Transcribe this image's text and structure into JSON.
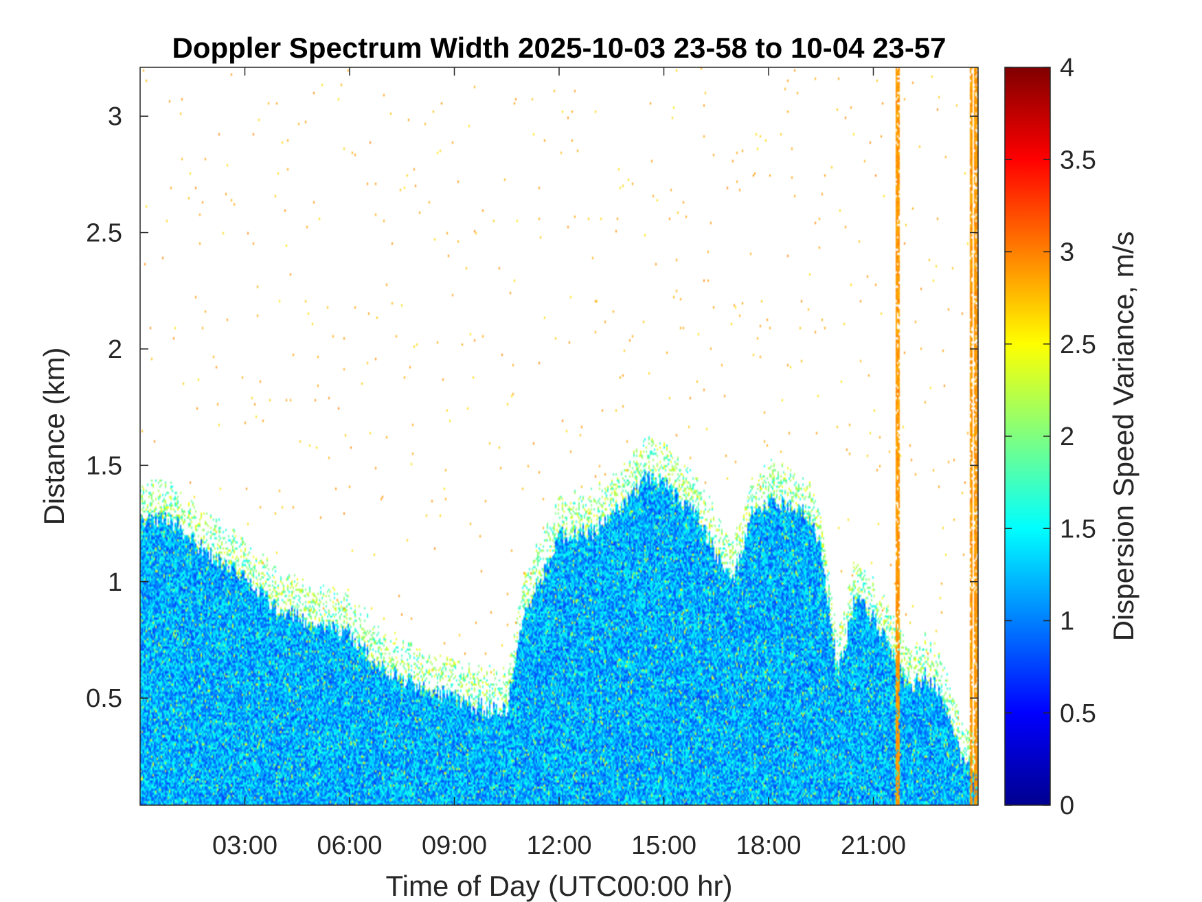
{
  "chart_data": {
    "type": "heatmap",
    "title": "Doppler Spectrum Width 2025-10-03 23-58 to 10-04 23-57",
    "xlabel": "Time of Day (UTC00:00 hr)",
    "ylabel": "Distance (km)",
    "colorbar_label": "Dispersion Speed Variance, m/s",
    "colormap": "jet",
    "xlim_hours": [
      0,
      24
    ],
    "ylim_km": [
      0.04,
      3.21
    ],
    "clim": [
      0,
      4
    ],
    "x_ticks": [
      {
        "value": 3,
        "label": "03:00"
      },
      {
        "value": 6,
        "label": "06:00"
      },
      {
        "value": 9,
        "label": "09:00"
      },
      {
        "value": 12,
        "label": "12:00"
      },
      {
        "value": 15,
        "label": "15:00"
      },
      {
        "value": 18,
        "label": "18:00"
      },
      {
        "value": 21,
        "label": "21:00"
      }
    ],
    "y_ticks": [
      {
        "value": 0.5,
        "label": "0.5"
      },
      {
        "value": 1,
        "label": "1"
      },
      {
        "value": 1.5,
        "label": "1.5"
      },
      {
        "value": 2,
        "label": "2"
      },
      {
        "value": 2.5,
        "label": "2.5"
      },
      {
        "value": 3,
        "label": "3"
      }
    ],
    "colorbar_ticks": [
      {
        "value": 0,
        "label": "0"
      },
      {
        "value": 0.5,
        "label": "0.5"
      },
      {
        "value": 1,
        "label": "1"
      },
      {
        "value": 1.5,
        "label": "1.5"
      },
      {
        "value": 2,
        "label": "2"
      },
      {
        "value": 2.5,
        "label": "2.5"
      },
      {
        "value": 3,
        "label": "3"
      },
      {
        "value": 3.5,
        "label": "3.5"
      },
      {
        "value": 4,
        "label": "4"
      }
    ],
    "boundary_layer_top_km": {
      "time_hr": [
        0,
        1,
        2,
        3,
        4,
        5,
        6,
        7,
        8,
        8.5,
        9,
        10,
        10.5,
        11,
        12,
        13,
        14,
        14.5,
        15,
        16,
        16.5,
        17,
        17.5,
        18,
        19,
        19.5,
        20,
        20.5,
        21,
        21.5,
        22,
        22.5,
        23,
        23.5,
        24
      ],
      "height_km": [
        1.28,
        1.25,
        1.12,
        1.02,
        0.88,
        0.82,
        0.78,
        0.62,
        0.55,
        0.52,
        0.5,
        0.45,
        0.45,
        0.85,
        1.2,
        1.22,
        1.35,
        1.45,
        1.42,
        1.28,
        1.12,
        1.0,
        1.3,
        1.35,
        1.3,
        1.15,
        0.6,
        0.95,
        0.85,
        0.7,
        0.55,
        0.6,
        0.5,
        0.25,
        0.2
      ]
    },
    "boundary_layer_typical_value_ms": 1.2,
    "high_variance_columns": [
      {
        "time_hr": 21.7,
        "value_ms": 2.9
      },
      {
        "time_hr": 23.8,
        "value_ms": 2.9
      },
      {
        "time_hr": 23.95,
        "value_ms": 2.9
      }
    ]
  }
}
